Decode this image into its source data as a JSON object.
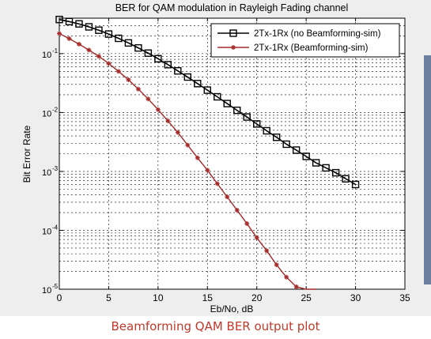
{
  "caption": "Beamforming QAM BER output plot",
  "chart_data": {
    "type": "line",
    "title": "BER for QAM modulation in Rayleigh Fading channel",
    "xlabel": "Eb/No, dB",
    "ylabel": "Bit Error Rate",
    "xlim": [
      0,
      35
    ],
    "ylim": [
      1e-05,
      0.4
    ],
    "y_scale": "log",
    "grid": true,
    "legend_position": "top-right",
    "x_ticks": [
      "0",
      "5",
      "10",
      "15",
      "20",
      "25",
      "30",
      "35"
    ],
    "y_ticks": [
      {
        "base": "10",
        "exp": "-1",
        "value": 0.1
      },
      {
        "base": "10",
        "exp": "-2",
        "value": 0.01
      },
      {
        "base": "10",
        "exp": "-3",
        "value": 0.001
      },
      {
        "base": "10",
        "exp": "-4",
        "value": 0.0001
      },
      {
        "base": "10",
        "exp": "-5",
        "value": 1e-05
      }
    ],
    "series": [
      {
        "name": "2Tx-1Rx (no Beamforming-sim)",
        "color": "#000000",
        "marker": "square",
        "x": [
          0,
          1,
          2,
          3,
          4,
          5,
          6,
          7,
          8,
          9,
          10,
          11,
          12,
          13,
          14,
          15,
          16,
          17,
          18,
          19,
          20,
          21,
          22,
          23,
          24,
          25,
          26,
          27,
          28,
          29,
          30
        ],
        "y": [
          0.38,
          0.35,
          0.32,
          0.285,
          0.25,
          0.215,
          0.182,
          0.152,
          0.125,
          0.102,
          0.082,
          0.065,
          0.051,
          0.04,
          0.031,
          0.024,
          0.0185,
          0.0142,
          0.0109,
          0.0084,
          0.0064,
          0.0049,
          0.0038,
          0.0029,
          0.0023,
          0.0018,
          0.0014,
          0.00115,
          0.00095,
          0.00075,
          0.0006
        ]
      },
      {
        "name": "2Tx-1Rx (Beamforming-sim)",
        "color": "#a52a2a",
        "marker": "star",
        "x": [
          0,
          1,
          2,
          3,
          4,
          5,
          6,
          7,
          8,
          9,
          10,
          11,
          12,
          13,
          14,
          15,
          16,
          17,
          18,
          19,
          20,
          21,
          22,
          23,
          24,
          25,
          26
        ],
        "y": [
          0.22,
          0.18,
          0.145,
          0.115,
          0.09,
          0.068,
          0.05,
          0.036,
          0.025,
          0.017,
          0.0112,
          0.0072,
          0.0046,
          0.0028,
          0.0017,
          0.00105,
          0.00062,
          0.00037,
          0.00022,
          0.00013,
          7.5e-05,
          4.5e-05,
          2.6e-05,
          1.6e-05,
          1.1e-05,
          9e-06,
          7e-06
        ]
      }
    ]
  }
}
